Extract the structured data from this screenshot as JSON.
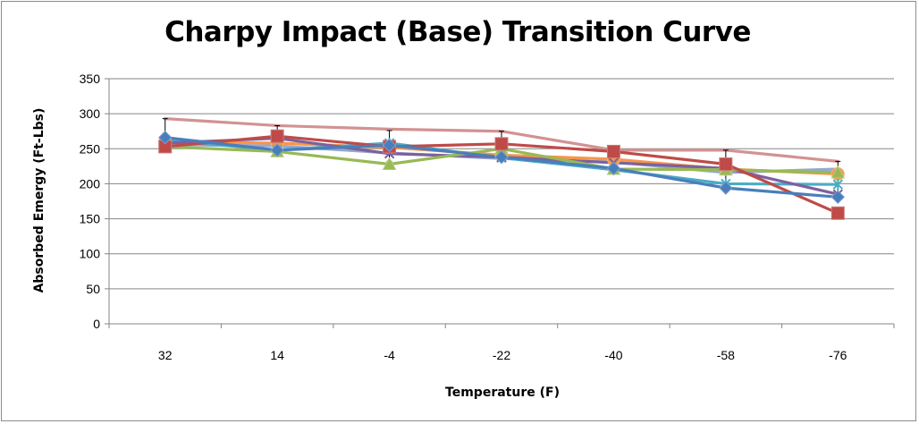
{
  "chart_data": {
    "type": "line",
    "title": "Charpy Impact (Base) Transition Curve",
    "xlabel": "Temperature (F)",
    "ylabel": "Absorbed Emergy (Ft-Lbs)",
    "categories": [
      "32",
      "14",
      "-4",
      "-22",
      "-40",
      "-58",
      "-76"
    ],
    "ylim": [
      0,
      350
    ],
    "yticks": [
      0,
      50,
      100,
      150,
      200,
      250,
      300,
      350
    ],
    "grid": true,
    "legend": "none",
    "series": [
      {
        "color": "#4a7ebb",
        "marker": "diamond",
        "values": [
          266,
          248,
          255,
          238,
          222,
          194,
          181
        ]
      },
      {
        "color": "#be4b48",
        "marker": "square",
        "values": [
          253,
          268,
          253,
          257,
          246,
          228,
          158
        ]
      },
      {
        "color": "#98b954",
        "marker": "triangle",
        "values": [
          253,
          246,
          228,
          250,
          221,
          220,
          216
        ]
      },
      {
        "color": "#7d60a0",
        "marker": "x",
        "values": [
          258,
          265,
          243,
          238,
          230,
          222,
          185
        ]
      },
      {
        "color": "#4bacc6",
        "marker": "star",
        "values": [
          262,
          248,
          258,
          237,
          220,
          200,
          199
        ]
      },
      {
        "color": "#f79646",
        "marker": "circle",
        "values": [
          260,
          258,
          252,
          241,
          235,
          221,
          214
        ]
      },
      {
        "color": "#93a9cf",
        "marker": "none",
        "values": [
          256,
          254,
          244,
          236,
          231,
          216,
          221
        ]
      },
      {
        "color": "#d19392",
        "marker": "none",
        "values": [
          293,
          283,
          278,
          275,
          248,
          248,
          232
        ]
      }
    ],
    "error_bars": {
      "color": "#000000",
      "low": [
        252,
        246,
        232,
        233,
        218,
        192,
        183
      ],
      "high": [
        293,
        283,
        276,
        275,
        248,
        248,
        232
      ]
    }
  }
}
